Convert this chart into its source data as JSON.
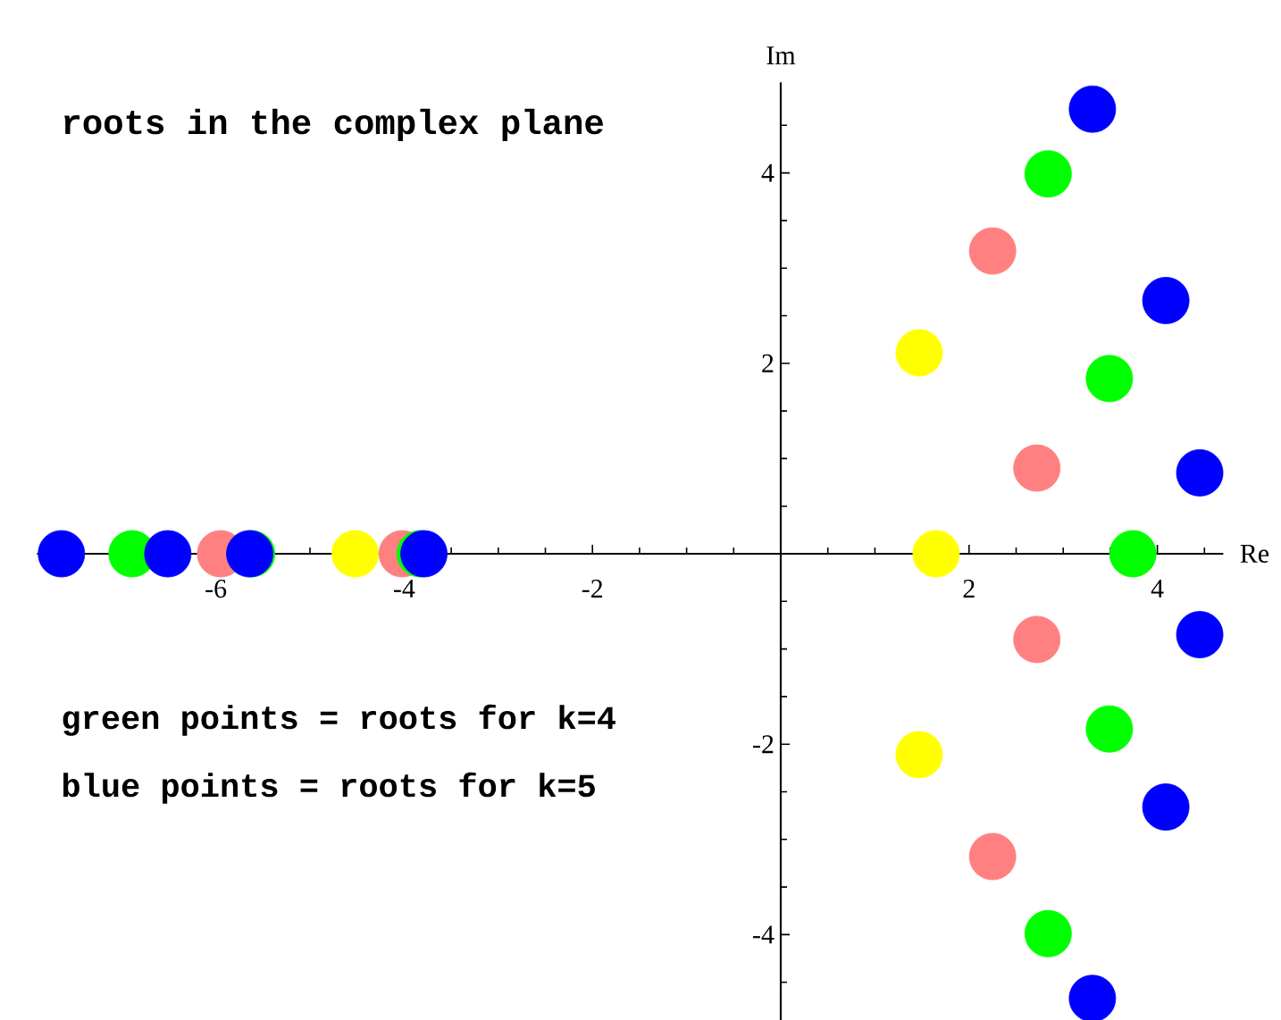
{
  "chart_data": {
    "type": "scatter",
    "title": "roots in the complex plane",
    "xlabel": "Re",
    "ylabel": "Im",
    "annotations": [
      "green points = roots for k=4",
      "blue  points = roots for k=5"
    ],
    "xlim": [
      -7.9,
      4.7
    ],
    "ylim": [
      -4.9,
      4.95
    ],
    "xticks": [
      {
        "value": -7.5,
        "label": null
      },
      {
        "value": -7,
        "label": null
      },
      {
        "value": -6.5,
        "label": null
      },
      -6,
      {
        "value": -5.5,
        "label": null
      },
      {
        "value": -5,
        "label": null
      },
      {
        "value": -4.5,
        "label": null
      },
      -4,
      {
        "value": -3.5,
        "label": null
      },
      {
        "value": -3,
        "label": null
      },
      {
        "value": -2.5,
        "label": null
      },
      -2,
      {
        "value": -1.5,
        "label": null
      },
      {
        "value": -1,
        "label": null
      },
      {
        "value": -0.5,
        "label": null
      },
      {
        "value": 0.5,
        "label": null
      },
      {
        "value": 1,
        "label": null
      },
      {
        "value": 1.5,
        "label": null
      },
      2,
      {
        "value": 2.5,
        "label": null
      },
      {
        "value": 3,
        "label": null
      },
      {
        "value": 3.5,
        "label": null
      },
      4,
      {
        "value": 4.5,
        "label": null
      }
    ],
    "yticks": [
      {
        "value": -4.5,
        "label": null
      },
      -4,
      {
        "value": -3.5,
        "label": null
      },
      {
        "value": -3,
        "label": null
      },
      {
        "value": -2.5,
        "label": null
      },
      -2,
      {
        "value": -1.5,
        "label": null
      },
      {
        "value": -1,
        "label": null
      },
      {
        "value": -0.5,
        "label": null
      },
      {
        "value": 0.5,
        "label": null
      },
      {
        "value": 1,
        "label": null
      },
      {
        "value": 1.5,
        "label": null
      },
      2,
      {
        "value": 2.5,
        "label": null
      },
      {
        "value": 3,
        "label": null
      },
      {
        "value": 3.5,
        "label": null
      },
      4,
      {
        "value": 4.5,
        "label": null
      }
    ],
    "marker": "circle",
    "series": [
      {
        "color": "#ffff00",
        "x": [
          -4.52,
          1.65,
          1.47,
          1.47
        ],
        "values": [
          0,
          0,
          2.11,
          -2.11
        ]
      },
      {
        "color": "#ff8080",
        "x": [
          -5.95,
          -4.02,
          2.72,
          2.72,
          2.25,
          2.25
        ],
        "values": [
          0,
          0,
          0.9,
          -0.9,
          3.18,
          -3.18
        ]
      },
      {
        "color": "#00ff00",
        "x": [
          -6.89,
          -5.62,
          -3.83,
          3.74,
          3.49,
          3.49,
          2.84,
          2.84
        ],
        "values": [
          0,
          0,
          0,
          0,
          1.84,
          -1.84,
          3.99,
          -3.99
        ]
      },
      {
        "color": "#0000ff",
        "x": [
          -7.64,
          -6.51,
          -5.64,
          -3.79,
          4.45,
          4.45,
          4.09,
          4.09,
          3.31,
          3.31
        ],
        "values": [
          0,
          0,
          0,
          0,
          0.85,
          -0.85,
          2.66,
          -2.66,
          4.67,
          -4.67
        ]
      }
    ]
  }
}
